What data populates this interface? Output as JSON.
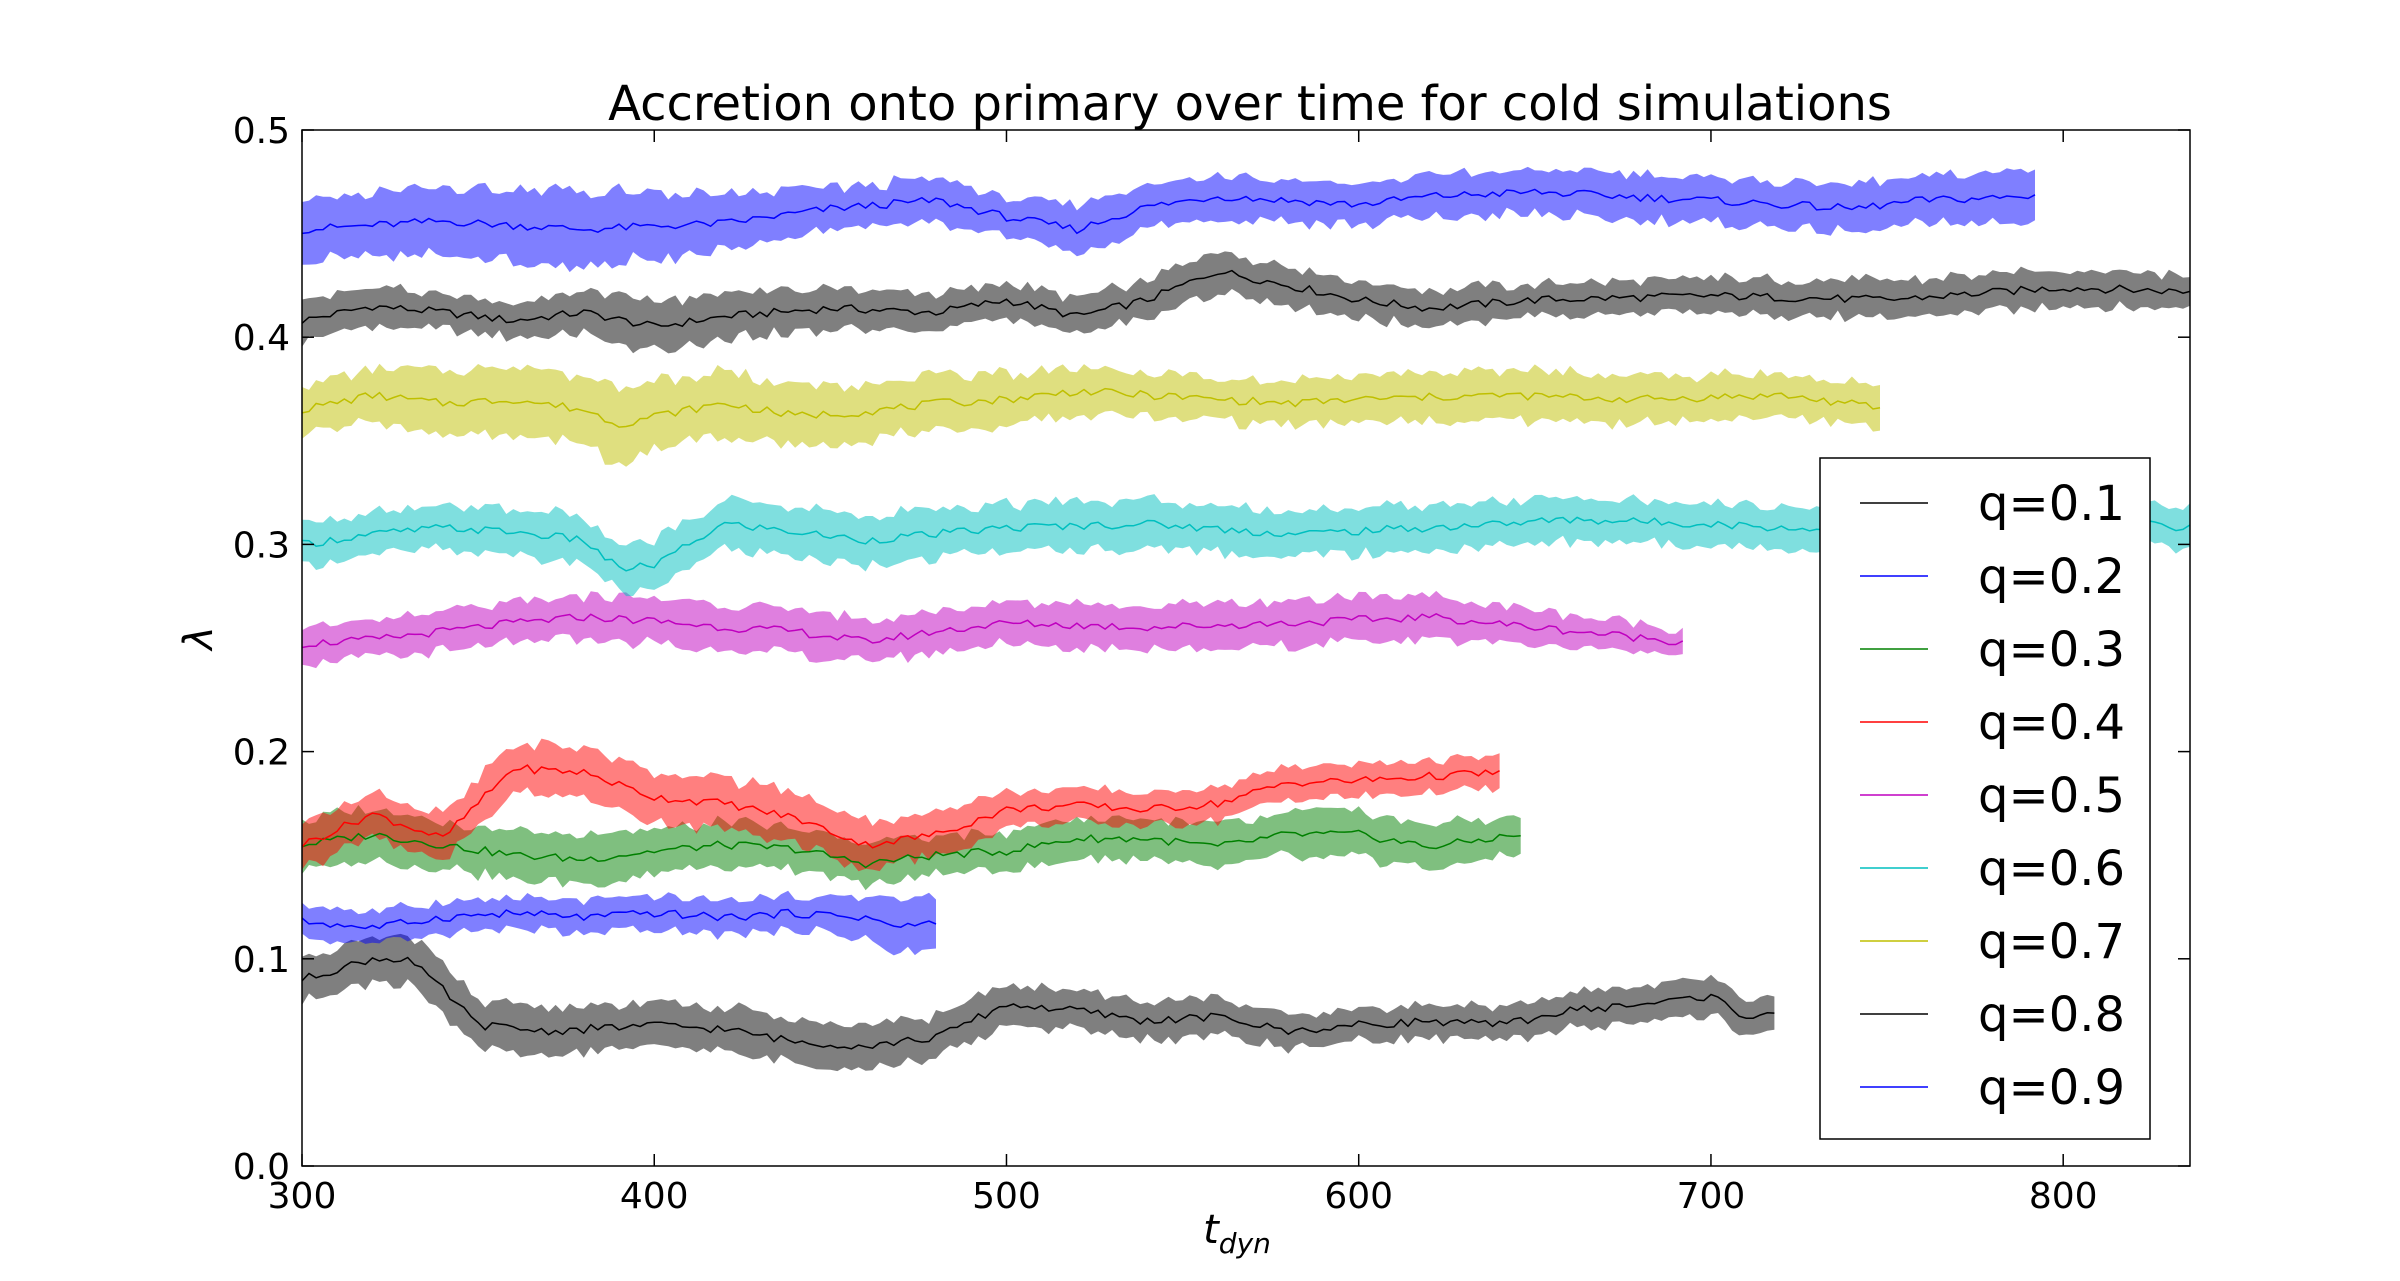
{
  "chart_data": {
    "type": "line",
    "title": "Accretion onto primary over time for cold simulations",
    "xlabel": "t",
    "xlabel_sub": "dyn",
    "ylabel": "λ",
    "xlim": [
      300,
      836
    ],
    "ylim": [
      0.0,
      0.5
    ],
    "xticks": [
      300,
      400,
      500,
      600,
      700,
      800
    ],
    "yticks": [
      0.0,
      0.1,
      0.2,
      0.3,
      0.4,
      0.5
    ],
    "ytick_labels": [
      "0.0",
      "0.1",
      "0.2",
      "0.3",
      "0.4",
      "0.5"
    ],
    "grid": false,
    "legend_position": "lower-right",
    "series": [
      {
        "name": "q=0.1",
        "color": "#000000",
        "x_end": 836,
        "mean": [
          [
            300,
            0.408
          ],
          [
            320,
            0.415
          ],
          [
            340,
            0.412
          ],
          [
            360,
            0.408
          ],
          [
            380,
            0.412
          ],
          [
            400,
            0.405
          ],
          [
            420,
            0.41
          ],
          [
            450,
            0.414
          ],
          [
            480,
            0.412
          ],
          [
            500,
            0.418
          ],
          [
            520,
            0.41
          ],
          [
            540,
            0.418
          ],
          [
            560,
            0.432
          ],
          [
            580,
            0.425
          ],
          [
            600,
            0.418
          ],
          [
            620,
            0.414
          ],
          [
            650,
            0.418
          ],
          [
            700,
            0.42
          ],
          [
            750,
            0.418
          ],
          [
            800,
            0.424
          ],
          [
            836,
            0.422
          ]
        ],
        "halfwidth": [
          [
            300,
            0.01
          ],
          [
            360,
            0.008
          ],
          [
            400,
            0.012
          ],
          [
            500,
            0.008
          ],
          [
            560,
            0.01
          ],
          [
            650,
            0.008
          ],
          [
            750,
            0.009
          ],
          [
            836,
            0.008
          ]
        ]
      },
      {
        "name": "q=0.2",
        "color": "#0000ff",
        "x_end": 793,
        "mean": [
          [
            300,
            0.452
          ],
          [
            340,
            0.456
          ],
          [
            380,
            0.452
          ],
          [
            420,
            0.455
          ],
          [
            450,
            0.462
          ],
          [
            480,
            0.466
          ],
          [
            500,
            0.458
          ],
          [
            520,
            0.452
          ],
          [
            540,
            0.463
          ],
          [
            560,
            0.468
          ],
          [
            580,
            0.466
          ],
          [
            600,
            0.464
          ],
          [
            620,
            0.468
          ],
          [
            650,
            0.47
          ],
          [
            700,
            0.466
          ],
          [
            740,
            0.462
          ],
          [
            760,
            0.466
          ],
          [
            793,
            0.468
          ]
        ],
        "halfwidth": [
          [
            300,
            0.014
          ],
          [
            380,
            0.018
          ],
          [
            450,
            0.01
          ],
          [
            520,
            0.011
          ],
          [
            600,
            0.01
          ],
          [
            700,
            0.011
          ],
          [
            793,
            0.012
          ]
        ]
      },
      {
        "name": "q=0.3",
        "color": "#008000",
        "x_end": 646,
        "mean": [
          [
            300,
            0.155
          ],
          [
            320,
            0.16
          ],
          [
            340,
            0.155
          ],
          [
            360,
            0.15
          ],
          [
            380,
            0.148
          ],
          [
            400,
            0.152
          ],
          [
            420,
            0.155
          ],
          [
            440,
            0.153
          ],
          [
            460,
            0.146
          ],
          [
            480,
            0.15
          ],
          [
            500,
            0.152
          ],
          [
            520,
            0.158
          ],
          [
            540,
            0.158
          ],
          [
            560,
            0.154
          ],
          [
            580,
            0.16
          ],
          [
            600,
            0.16
          ],
          [
            620,
            0.154
          ],
          [
            646,
            0.16
          ]
        ],
        "halfwidth": [
          [
            300,
            0.012
          ],
          [
            400,
            0.011
          ],
          [
            500,
            0.009
          ],
          [
            600,
            0.011
          ],
          [
            646,
            0.009
          ]
        ]
      },
      {
        "name": "q=0.4",
        "color": "#ff0000",
        "x_end": 640,
        "mean": [
          [
            300,
            0.155
          ],
          [
            320,
            0.17
          ],
          [
            340,
            0.158
          ],
          [
            350,
            0.175
          ],
          [
            360,
            0.192
          ],
          [
            380,
            0.19
          ],
          [
            400,
            0.178
          ],
          [
            420,
            0.175
          ],
          [
            440,
            0.168
          ],
          [
            460,
            0.155
          ],
          [
            480,
            0.16
          ],
          [
            500,
            0.172
          ],
          [
            520,
            0.174
          ],
          [
            540,
            0.172
          ],
          [
            560,
            0.175
          ],
          [
            580,
            0.185
          ],
          [
            600,
            0.186
          ],
          [
            620,
            0.188
          ],
          [
            640,
            0.19
          ]
        ],
        "halfwidth": [
          [
            300,
            0.011
          ],
          [
            380,
            0.012
          ],
          [
            450,
            0.012
          ],
          [
            520,
            0.008
          ],
          [
            600,
            0.008
          ],
          [
            640,
            0.008
          ]
        ]
      },
      {
        "name": "q=0.5",
        "color": "#bf00bf",
        "x_end": 692,
        "mean": [
          [
            300,
            0.252
          ],
          [
            320,
            0.254
          ],
          [
            340,
            0.258
          ],
          [
            360,
            0.262
          ],
          [
            380,
            0.265
          ],
          [
            400,
            0.263
          ],
          [
            420,
            0.26
          ],
          [
            440,
            0.258
          ],
          [
            460,
            0.253
          ],
          [
            480,
            0.258
          ],
          [
            500,
            0.262
          ],
          [
            540,
            0.26
          ],
          [
            580,
            0.262
          ],
          [
            620,
            0.265
          ],
          [
            650,
            0.26
          ],
          [
            692,
            0.253
          ]
        ],
        "halfwidth": [
          [
            300,
            0.009
          ],
          [
            400,
            0.011
          ],
          [
            500,
            0.01
          ],
          [
            600,
            0.011
          ],
          [
            692,
            0.006
          ]
        ]
      },
      {
        "name": "q=0.6",
        "color": "#00bfbf",
        "x_end": 836,
        "mean": [
          [
            300,
            0.3
          ],
          [
            320,
            0.305
          ],
          [
            340,
            0.308
          ],
          [
            360,
            0.306
          ],
          [
            380,
            0.302
          ],
          [
            390,
            0.288
          ],
          [
            400,
            0.29
          ],
          [
            420,
            0.31
          ],
          [
            440,
            0.306
          ],
          [
            460,
            0.302
          ],
          [
            480,
            0.305
          ],
          [
            500,
            0.308
          ],
          [
            540,
            0.31
          ],
          [
            580,
            0.305
          ],
          [
            620,
            0.308
          ],
          [
            660,
            0.312
          ],
          [
            700,
            0.31
          ],
          [
            740,
            0.306
          ],
          [
            780,
            0.31
          ],
          [
            820,
            0.31
          ],
          [
            836,
            0.308
          ]
        ],
        "halfwidth": [
          [
            300,
            0.01
          ],
          [
            400,
            0.012
          ],
          [
            500,
            0.012
          ],
          [
            600,
            0.011
          ],
          [
            700,
            0.01
          ],
          [
            836,
            0.01
          ]
        ]
      },
      {
        "name": "q=0.7",
        "color": "#bfbf00",
        "x_end": 748,
        "mean": [
          [
            300,
            0.365
          ],
          [
            320,
            0.372
          ],
          [
            340,
            0.368
          ],
          [
            360,
            0.37
          ],
          [
            380,
            0.365
          ],
          [
            390,
            0.358
          ],
          [
            400,
            0.362
          ],
          [
            420,
            0.368
          ],
          [
            440,
            0.362
          ],
          [
            460,
            0.364
          ],
          [
            480,
            0.368
          ],
          [
            500,
            0.37
          ],
          [
            520,
            0.374
          ],
          [
            540,
            0.372
          ],
          [
            560,
            0.37
          ],
          [
            580,
            0.368
          ],
          [
            600,
            0.37
          ],
          [
            640,
            0.372
          ],
          [
            680,
            0.37
          ],
          [
            720,
            0.372
          ],
          [
            748,
            0.366
          ]
        ],
        "halfwidth": [
          [
            300,
            0.012
          ],
          [
            390,
            0.018
          ],
          [
            450,
            0.014
          ],
          [
            550,
            0.01
          ],
          [
            650,
            0.012
          ],
          [
            748,
            0.01
          ]
        ]
      },
      {
        "name": "q=0.8",
        "color": "#000000",
        "x_end": 719,
        "mean": [
          [
            300,
            0.09
          ],
          [
            320,
            0.1
          ],
          [
            330,
            0.1
          ],
          [
            340,
            0.085
          ],
          [
            350,
            0.068
          ],
          [
            370,
            0.065
          ],
          [
            400,
            0.068
          ],
          [
            420,
            0.066
          ],
          [
            440,
            0.06
          ],
          [
            460,
            0.058
          ],
          [
            480,
            0.062
          ],
          [
            500,
            0.078
          ],
          [
            520,
            0.075
          ],
          [
            540,
            0.07
          ],
          [
            560,
            0.072
          ],
          [
            580,
            0.065
          ],
          [
            600,
            0.068
          ],
          [
            620,
            0.07
          ],
          [
            640,
            0.068
          ],
          [
            660,
            0.075
          ],
          [
            680,
            0.078
          ],
          [
            700,
            0.082
          ],
          [
            710,
            0.072
          ],
          [
            719,
            0.075
          ]
        ],
        "halfwidth": [
          [
            300,
            0.01
          ],
          [
            340,
            0.012
          ],
          [
            400,
            0.011
          ],
          [
            500,
            0.01
          ],
          [
            600,
            0.008
          ],
          [
            719,
            0.009
          ]
        ]
      },
      {
        "name": "q=0.9",
        "color": "#0000ff",
        "x_end": 480,
        "mean": [
          [
            300,
            0.118
          ],
          [
            320,
            0.115
          ],
          [
            340,
            0.12
          ],
          [
            360,
            0.122
          ],
          [
            380,
            0.12
          ],
          [
            400,
            0.122
          ],
          [
            420,
            0.12
          ],
          [
            440,
            0.122
          ],
          [
            460,
            0.12
          ],
          [
            470,
            0.115
          ],
          [
            480,
            0.118
          ]
        ],
        "halfwidth": [
          [
            300,
            0.007
          ],
          [
            380,
            0.008
          ],
          [
            450,
            0.008
          ],
          [
            470,
            0.014
          ],
          [
            480,
            0.012
          ]
        ]
      }
    ]
  }
}
